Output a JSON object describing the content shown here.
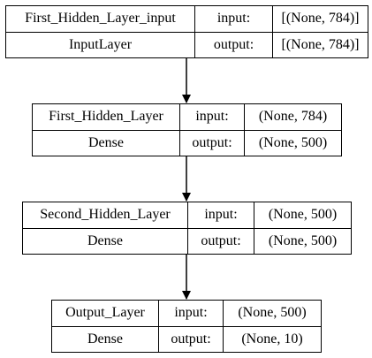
{
  "layers": [
    {
      "name": "First_Hidden_Layer_input",
      "type": "InputLayer",
      "input_label": "input:",
      "input_shape": "[(None, 784)]",
      "output_label": "output:",
      "output_shape": "[(None, 784)]"
    },
    {
      "name": "First_Hidden_Layer",
      "type": "Dense",
      "input_label": "input:",
      "input_shape": "(None, 784)",
      "output_label": "output:",
      "output_shape": "(None, 500)"
    },
    {
      "name": "Second_Hidden_Layer",
      "type": "Dense",
      "input_label": "input:",
      "input_shape": "(None, 500)",
      "output_label": "output:",
      "output_shape": "(None, 500)"
    },
    {
      "name": "Output_Layer",
      "type": "Dense",
      "input_label": "input:",
      "input_shape": "(None, 500)",
      "output_label": "output:",
      "output_shape": "(None, 10)"
    }
  ],
  "edges": [
    {
      "from": 0,
      "to": 1
    },
    {
      "from": 1,
      "to": 2
    },
    {
      "from": 2,
      "to": 3
    }
  ]
}
